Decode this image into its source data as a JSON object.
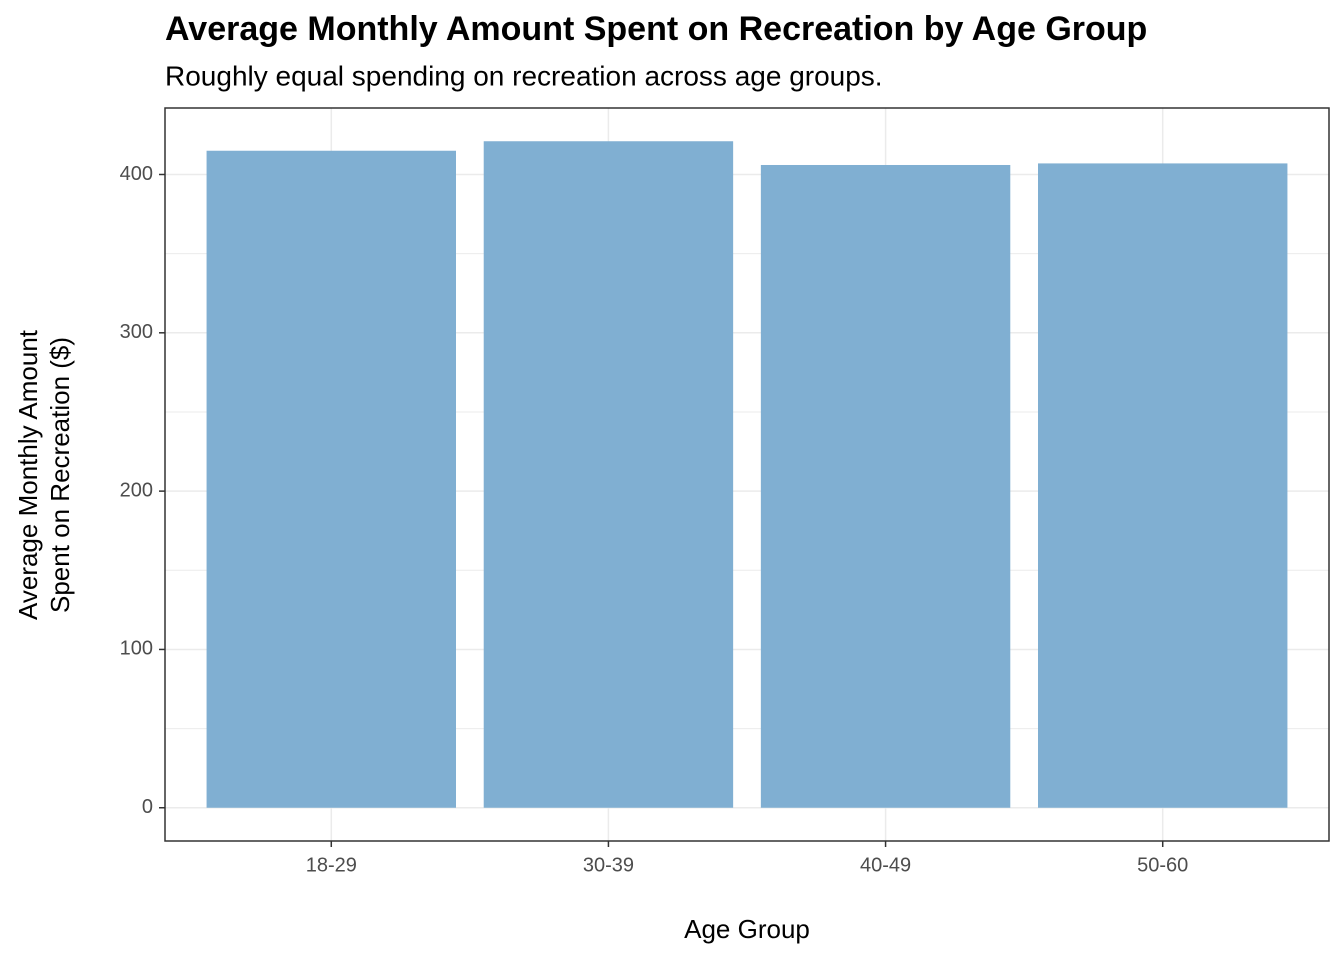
{
  "chart_data": {
    "type": "bar",
    "title": "Average Monthly Amount Spent on Recreation by Age Group",
    "subtitle": "Roughly equal spending on recreation across age groups.",
    "xlabel": "Age Group",
    "ylabel": [
      "Average Monthly Amount",
      "Spent on Recreation ($)"
    ],
    "categories": [
      "18-29",
      "30-39",
      "40-49",
      "50-60"
    ],
    "values": [
      415,
      421,
      406,
      407
    ],
    "color": "#80afd2",
    "ylim": [
      -21,
      442
    ],
    "yticks": [
      0,
      100,
      200,
      300,
      400
    ],
    "minor_yticks": [
      50,
      150,
      250,
      350
    ],
    "grid": true
  }
}
